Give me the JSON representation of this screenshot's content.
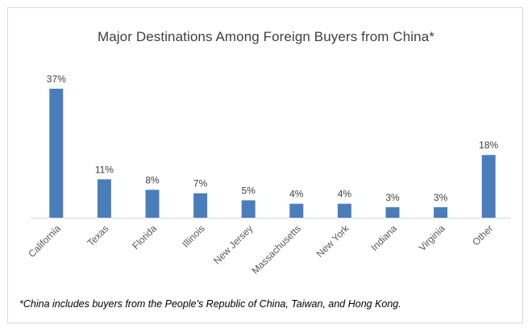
{
  "chart_data": {
    "type": "bar",
    "title": "Major Destinations Among Foreign Buyers from China*",
    "categories": [
      "California",
      "Texas",
      "Florida",
      "Illinois",
      "New Jersey",
      "Massachusetts",
      "New York",
      "Indiana",
      "Virginia",
      "Other"
    ],
    "values": [
      37,
      11,
      8,
      7,
      5,
      4,
      4,
      3,
      3,
      18
    ],
    "data_labels": [
      "37%",
      "11%",
      "8%",
      "7%",
      "5%",
      "4%",
      "4%",
      "3%",
      "3%",
      "18%"
    ],
    "ylim": [
      0,
      37
    ],
    "grid": false,
    "bar_color": "#4a7ebb",
    "footnote": "*China includes buyers from the People's Republic of China, Taiwan, and Hong Kong."
  }
}
